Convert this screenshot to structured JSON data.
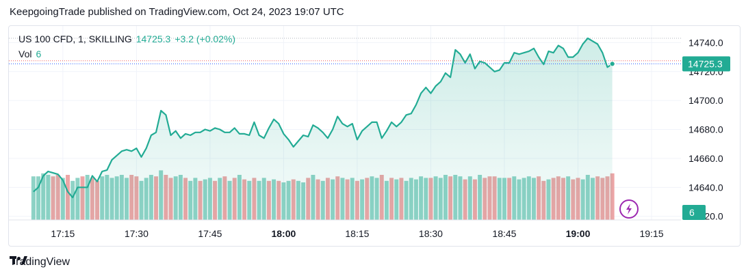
{
  "header": {
    "publish_line": "KeepgoingTrade published on TradingView.com, Oct 24, 2023 19:07 UTC"
  },
  "legend": {
    "symbol": "US 100 CFD, 1, SKILLING",
    "last": "14725.3",
    "change": "+3.2 (+0.02%)",
    "vol_label": "Vol",
    "vol_value": "6"
  },
  "footer": {
    "brand": "TradingView"
  },
  "colors": {
    "line": "#22ab94",
    "area_fill": "#dff3ef",
    "up_volume": "#8fd3c6",
    "down_volume": "#eda5a6",
    "last_price_line": "#2962ff",
    "high_line": "#ef5350",
    "grid": "#f0f3fa",
    "bolt_icon": "#9c27b0"
  },
  "chart_data": {
    "type": "area",
    "x_axis": {
      "ticks": [
        {
          "label": "17:15",
          "min": 15,
          "bold": false
        },
        {
          "label": "17:30",
          "min": 30,
          "bold": false
        },
        {
          "label": "17:45",
          "min": 45,
          "bold": false
        },
        {
          "label": "18:00",
          "min": 60,
          "bold": true
        },
        {
          "label": "18:15",
          "min": 75,
          "bold": false
        },
        {
          "label": "18:30",
          "min": 90,
          "bold": false
        },
        {
          "label": "18:45",
          "min": 105,
          "bold": false
        },
        {
          "label": "19:00",
          "min": 120,
          "bold": true
        },
        {
          "label": "19:15",
          "min": 135,
          "bold": false
        }
      ],
      "range_minutes_after_17_00": [
        4,
        141
      ]
    },
    "y_axis": {
      "ticks": [
        14620,
        14640,
        14660,
        14680,
        14700,
        14720,
        14740
      ],
      "tick_labels": [
        "14620.0",
        "14640.0",
        "14660.0",
        "14680.0",
        "14700.0",
        "14720.0",
        "14740.0"
      ],
      "range": [
        14617.5,
        14751.5
      ]
    },
    "last_price_label": "14725.3",
    "volume_label": "6",
    "series": [
      {
        "values": [
          14637,
          14640,
          14648,
          14651,
          14650,
          14649,
          14645,
          14637,
          14633,
          14640,
          14640,
          14640,
          14648,
          14644,
          14651,
          14652,
          14659,
          14662,
          14665,
          14666,
          14665,
          14667,
          14661,
          14667,
          14676,
          14678,
          14693,
          14690,
          14676,
          14679,
          14674,
          14677,
          14676,
          14678,
          14678,
          14680,
          14679,
          14681,
          14680,
          14678,
          14678,
          14681,
          14677,
          14677,
          14676,
          14685,
          14676,
          14674,
          14681,
          14687,
          14684,
          14677,
          14673,
          14668,
          14672,
          14676,
          14675,
          14683,
          14681,
          14678,
          14674,
          14680,
          14689,
          14684,
          14682,
          14684,
          14673,
          14679,
          14682,
          14685,
          14685,
          14674,
          14679,
          14685,
          14682,
          14685,
          14690,
          14691,
          14697,
          14705,
          14709,
          14705,
          14710,
          14713,
          14719,
          14716,
          14735,
          14732,
          14726,
          14732,
          14722,
          14727,
          14726,
          14723,
          14720,
          14721,
          14726,
          14726,
          14733,
          14732,
          14733,
          14734,
          14736,
          14730,
          14725,
          14734,
          14733,
          14738,
          14736,
          14730,
          14730,
          14733,
          14739,
          14743,
          14741,
          14739,
          14733,
          14723,
          14725.3
        ]
      }
    ],
    "volume": [
      {
        "v": 0.58,
        "up": true
      },
      {
        "v": 0.58,
        "up": true
      },
      {
        "v": 0.62,
        "up": true
      },
      {
        "v": 0.6,
        "up": true
      },
      {
        "v": 0.58,
        "up": false
      },
      {
        "v": 0.6,
        "up": false
      },
      {
        "v": 0.56,
        "up": true
      },
      {
        "v": 0.6,
        "up": false
      },
      {
        "v": 0.52,
        "up": true
      },
      {
        "v": 0.56,
        "up": true
      },
      {
        "v": 0.58,
        "up": false
      },
      {
        "v": 0.6,
        "up": true
      },
      {
        "v": 0.56,
        "up": false
      },
      {
        "v": 0.52,
        "up": false
      },
      {
        "v": 0.58,
        "up": true
      },
      {
        "v": 0.6,
        "up": true
      },
      {
        "v": 0.56,
        "up": true
      },
      {
        "v": 0.58,
        "up": true
      },
      {
        "v": 0.6,
        "up": true
      },
      {
        "v": 0.56,
        "up": true
      },
      {
        "v": 0.6,
        "up": false
      },
      {
        "v": 0.58,
        "up": false
      },
      {
        "v": 0.52,
        "up": true
      },
      {
        "v": 0.56,
        "up": true
      },
      {
        "v": 0.6,
        "up": true
      },
      {
        "v": 0.58,
        "up": false
      },
      {
        "v": 0.66,
        "up": true
      },
      {
        "v": 0.6,
        "up": false
      },
      {
        "v": 0.56,
        "up": false
      },
      {
        "v": 0.58,
        "up": true
      },
      {
        "v": 0.6,
        "up": true
      },
      {
        "v": 0.56,
        "up": false
      },
      {
        "v": 0.52,
        "up": true
      },
      {
        "v": 0.56,
        "up": true
      },
      {
        "v": 0.52,
        "up": false
      },
      {
        "v": 0.54,
        "up": true
      },
      {
        "v": 0.56,
        "up": true
      },
      {
        "v": 0.52,
        "up": false
      },
      {
        "v": 0.56,
        "up": true
      },
      {
        "v": 0.58,
        "up": false
      },
      {
        "v": 0.52,
        "up": true
      },
      {
        "v": 0.56,
        "up": false
      },
      {
        "v": 0.6,
        "up": true
      },
      {
        "v": 0.54,
        "up": false
      },
      {
        "v": 0.52,
        "up": true
      },
      {
        "v": 0.56,
        "up": false
      },
      {
        "v": 0.52,
        "up": true
      },
      {
        "v": 0.56,
        "up": true
      },
      {
        "v": 0.52,
        "up": false
      },
      {
        "v": 0.54,
        "up": true
      },
      {
        "v": 0.52,
        "up": false
      },
      {
        "v": 0.5,
        "up": true
      },
      {
        "v": 0.52,
        "up": true
      },
      {
        "v": 0.54,
        "up": false
      },
      {
        "v": 0.52,
        "up": true
      },
      {
        "v": 0.5,
        "up": true
      },
      {
        "v": 0.56,
        "up": false
      },
      {
        "v": 0.6,
        "up": true
      },
      {
        "v": 0.54,
        "up": false
      },
      {
        "v": 0.52,
        "up": true
      },
      {
        "v": 0.56,
        "up": false
      },
      {
        "v": 0.54,
        "up": true
      },
      {
        "v": 0.58,
        "up": false
      },
      {
        "v": 0.56,
        "up": true
      },
      {
        "v": 0.54,
        "up": false
      },
      {
        "v": 0.56,
        "up": true
      },
      {
        "v": 0.52,
        "up": false
      },
      {
        "v": 0.54,
        "up": true
      },
      {
        "v": 0.56,
        "up": false
      },
      {
        "v": 0.58,
        "up": true
      },
      {
        "v": 0.56,
        "up": true
      },
      {
        "v": 0.6,
        "up": false
      },
      {
        "v": 0.52,
        "up": true
      },
      {
        "v": 0.56,
        "up": false
      },
      {
        "v": 0.54,
        "up": true
      },
      {
        "v": 0.56,
        "up": false
      },
      {
        "v": 0.52,
        "up": true
      },
      {
        "v": 0.56,
        "up": true
      },
      {
        "v": 0.54,
        "up": true
      },
      {
        "v": 0.58,
        "up": true
      },
      {
        "v": 0.56,
        "up": true
      },
      {
        "v": 0.56,
        "up": false
      },
      {
        "v": 0.58,
        "up": true
      },
      {
        "v": 0.56,
        "up": true
      },
      {
        "v": 0.6,
        "up": true
      },
      {
        "v": 0.58,
        "up": false
      },
      {
        "v": 0.6,
        "up": true
      },
      {
        "v": 0.58,
        "up": true
      },
      {
        "v": 0.54,
        "up": false
      },
      {
        "v": 0.58,
        "up": true
      },
      {
        "v": 0.54,
        "up": false
      },
      {
        "v": 0.6,
        "up": true
      },
      {
        "v": 0.56,
        "up": false
      },
      {
        "v": 0.58,
        "up": false
      },
      {
        "v": 0.58,
        "up": false
      },
      {
        "v": 0.56,
        "up": true
      },
      {
        "v": 0.56,
        "up": true
      },
      {
        "v": 0.56,
        "up": false
      },
      {
        "v": 0.58,
        "up": true
      },
      {
        "v": 0.54,
        "up": true
      },
      {
        "v": 0.56,
        "up": true
      },
      {
        "v": 0.58,
        "up": true
      },
      {
        "v": 0.56,
        "up": true
      },
      {
        "v": 0.58,
        "up": false
      },
      {
        "v": 0.52,
        "up": false
      },
      {
        "v": 0.54,
        "up": true
      },
      {
        "v": 0.56,
        "up": false
      },
      {
        "v": 0.58,
        "up": false
      },
      {
        "v": 0.56,
        "up": false
      },
      {
        "v": 0.58,
        "up": true
      },
      {
        "v": 0.54,
        "up": false
      },
      {
        "v": 0.56,
        "up": false
      },
      {
        "v": 0.54,
        "up": true
      },
      {
        "v": 0.6,
        "up": true
      },
      {
        "v": 0.56,
        "up": true
      },
      {
        "v": 0.58,
        "up": false
      },
      {
        "v": 0.56,
        "up": false
      },
      {
        "v": 0.58,
        "up": false
      },
      {
        "v": 0.62,
        "up": false
      }
    ]
  }
}
